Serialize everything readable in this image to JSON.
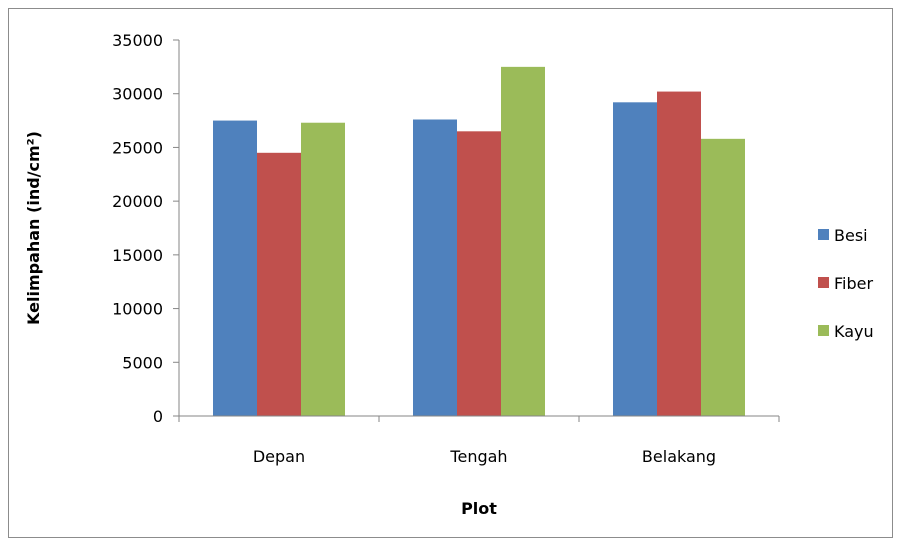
{
  "chart_data": {
    "type": "bar",
    "categories": [
      "Depan",
      "Tengah",
      "Belakang"
    ],
    "series": [
      {
        "name": "Besi",
        "color": "#4F81BD",
        "values": [
          27500,
          27600,
          29200
        ]
      },
      {
        "name": "Fiber",
        "color": "#C0504D",
        "values": [
          24500,
          26500,
          30200
        ]
      },
      {
        "name": "Kayu",
        "color": "#9BBB59",
        "values": [
          27300,
          32500,
          25800
        ]
      }
    ],
    "title": "",
    "xlabel": "Plot",
    "ylabel": "Kelimpahan (ind/cm²)",
    "ylim": [
      0,
      35000
    ],
    "yticks": [
      0,
      5000,
      10000,
      15000,
      20000,
      25000,
      30000,
      35000
    ],
    "grid": false,
    "legend_position": "right"
  }
}
